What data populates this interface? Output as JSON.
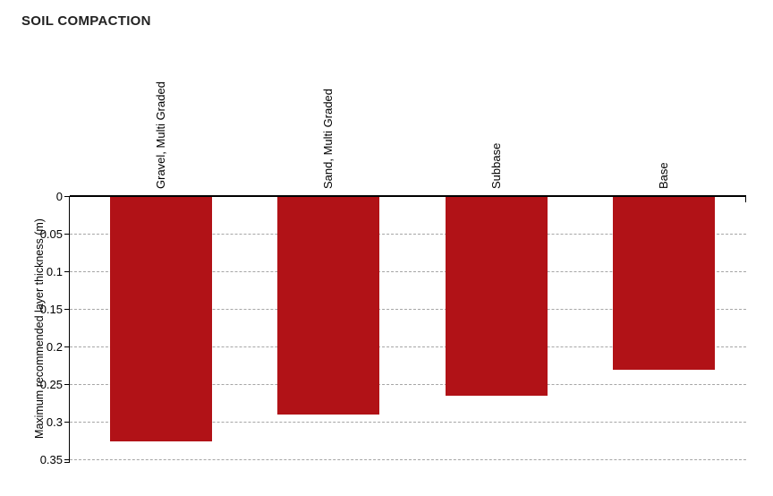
{
  "title": "SOIL COMPACTION",
  "chart_data": {
    "type": "bar",
    "title": "SOIL COMPACTION",
    "categories": [
      "Gravel, Multi Graded",
      "Sand, Multi Graded",
      "Subbase",
      "Base"
    ],
    "values": [
      0.325,
      0.29,
      0.265,
      0.23
    ],
    "xlabel": "",
    "ylabel": "Maximum recommended layer thickness (m)",
    "ylim": [
      0,
      0.35
    ],
    "axis_inverted": true,
    "yticks": [
      0,
      0.05,
      0.1,
      0.15,
      0.2,
      0.25,
      0.3,
      0.35
    ],
    "ytick_labels": [
      "0",
      "0.05",
      "0.1",
      "0.15",
      "0.2",
      "0.25",
      "0.3",
      "0.35"
    ],
    "grid": "horizontal-dashed",
    "legend": "none",
    "colors": {
      "bar": "#B11217",
      "gridline": "#A6A6A6",
      "axis": "#000000",
      "text": "#000000",
      "title": "#222222"
    }
  }
}
